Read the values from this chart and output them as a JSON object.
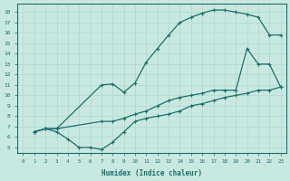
{
  "xlabel": "Humidex (Indice chaleur)",
  "ylabel": "",
  "bg_color": "#c8e8e0",
  "grid_color": "#b0d8d0",
  "line_color": "#1a7070",
  "xlim": [
    -0.5,
    23.5
  ],
  "ylim": [
    4.5,
    18.8
  ],
  "xticks": [
    0,
    1,
    2,
    3,
    4,
    5,
    6,
    7,
    8,
    9,
    10,
    11,
    12,
    13,
    14,
    15,
    16,
    17,
    18,
    19,
    20,
    21,
    22,
    23
  ],
  "yticks": [
    5,
    6,
    7,
    8,
    9,
    10,
    11,
    12,
    13,
    14,
    15,
    16,
    17,
    18
  ],
  "curve_top_x": [
    1,
    2,
    3,
    7,
    8,
    9,
    10,
    11,
    12,
    13,
    14,
    15,
    16,
    17,
    18,
    19,
    20,
    21,
    22,
    23
  ],
  "curve_top_y": [
    6.5,
    6.8,
    6.8,
    11.0,
    11.1,
    10.3,
    11.2,
    13.2,
    14.5,
    15.8,
    17.0,
    17.5,
    17.9,
    18.2,
    18.2,
    18.0,
    17.8,
    17.5,
    15.8,
    15.8
  ],
  "curve_mid_x": [
    1,
    2,
    3,
    7,
    8,
    9,
    10,
    11,
    12,
    13,
    14,
    15,
    16,
    17,
    18,
    19,
    20,
    21,
    22,
    23
  ],
  "curve_mid_y": [
    6.5,
    6.8,
    6.8,
    7.5,
    7.5,
    7.8,
    8.2,
    8.5,
    9.0,
    9.5,
    9.8,
    10.0,
    10.2,
    10.5,
    10.5,
    10.5,
    14.5,
    13.0,
    13.0,
    10.8
  ],
  "curve_bot_x": [
    1,
    2,
    3,
    4,
    5,
    6,
    7,
    8,
    9,
    10,
    11,
    12,
    13,
    14,
    15,
    16,
    17,
    18,
    19,
    20,
    21,
    22,
    23
  ],
  "curve_bot_y": [
    6.5,
    6.8,
    6.5,
    5.8,
    5.0,
    5.0,
    4.8,
    5.5,
    6.5,
    7.5,
    7.8,
    8.0,
    8.2,
    8.5,
    9.0,
    9.2,
    9.5,
    9.8,
    10.0,
    10.2,
    10.5,
    10.5,
    10.8
  ]
}
